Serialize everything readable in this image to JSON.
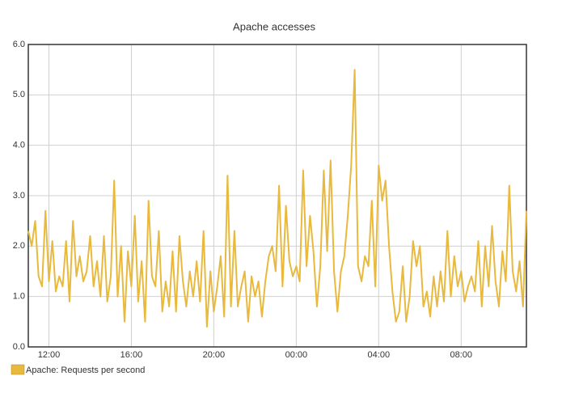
{
  "chart_data": {
    "type": "line",
    "title": "Apache accesses",
    "categories": [
      null,
      null,
      null,
      null,
      null,
      null,
      "12:00",
      null,
      null,
      null,
      null,
      null,
      null,
      null,
      null,
      null,
      null,
      null,
      null,
      null,
      null,
      null,
      null,
      null,
      null,
      null,
      null,
      null,
      null,
      null,
      "16:00",
      null,
      null,
      null,
      null,
      null,
      null,
      null,
      null,
      null,
      null,
      null,
      null,
      null,
      null,
      null,
      null,
      null,
      null,
      null,
      null,
      null,
      null,
      null,
      "20:00",
      null,
      null,
      null,
      null,
      null,
      null,
      null,
      null,
      null,
      null,
      null,
      null,
      null,
      null,
      null,
      null,
      null,
      null,
      null,
      null,
      null,
      null,
      null,
      "00:00",
      null,
      null,
      null,
      null,
      null,
      null,
      null,
      null,
      null,
      null,
      null,
      null,
      null,
      null,
      null,
      null,
      null,
      null,
      null,
      null,
      null,
      null,
      null,
      "04:00",
      null,
      null,
      null,
      null,
      null,
      null,
      null,
      null,
      null,
      null,
      null,
      null,
      null,
      null,
      null,
      null,
      null,
      null,
      null,
      null,
      null,
      null,
      null,
      "08:00",
      null,
      null,
      null,
      null,
      null,
      null,
      null,
      null,
      null,
      null,
      null,
      null,
      null,
      null,
      null,
      null,
      null,
      null,
      null
    ],
    "series": [
      {
        "name": "Apache: Requests per second",
        "color": "#e8b93c",
        "values": [
          2.3,
          2.0,
          2.5,
          1.4,
          1.2,
          2.7,
          1.3,
          2.1,
          1.1,
          1.4,
          1.2,
          2.1,
          0.9,
          2.5,
          1.4,
          1.8,
          1.3,
          1.5,
          2.2,
          1.2,
          1.7,
          1.0,
          2.2,
          0.9,
          1.4,
          3.3,
          1.0,
          2.0,
          0.5,
          1.9,
          1.2,
          2.6,
          0.9,
          1.7,
          0.5,
          2.9,
          1.4,
          1.2,
          2.3,
          0.7,
          1.3,
          0.8,
          1.9,
          0.7,
          2.2,
          1.3,
          0.8,
          1.5,
          1.0,
          1.7,
          0.9,
          2.3,
          0.4,
          1.5,
          0.7,
          1.2,
          1.8,
          0.6,
          3.4,
          0.8,
          2.3,
          0.8,
          1.2,
          1.5,
          0.5,
          1.4,
          1.0,
          1.3,
          0.6,
          1.3,
          1.8,
          2.0,
          1.5,
          3.2,
          1.2,
          2.8,
          1.7,
          1.4,
          1.6,
          1.3,
          3.5,
          1.6,
          2.6,
          1.9,
          0.8,
          1.6,
          3.5,
          1.9,
          3.7,
          1.5,
          0.7,
          1.5,
          1.8,
          2.6,
          3.6,
          5.5,
          1.6,
          1.3,
          1.8,
          1.6,
          2.9,
          1.2,
          3.6,
          2.9,
          3.3,
          2.0,
          1.1,
          0.5,
          0.7,
          1.6,
          0.5,
          1.0,
          2.1,
          1.6,
          2.0,
          0.8,
          1.1,
          0.6,
          1.4,
          0.8,
          1.5,
          0.9,
          2.3,
          1.0,
          1.8,
          1.2,
          1.5,
          0.9,
          1.2,
          1.4,
          1.1,
          2.1,
          0.8,
          2.0,
          1.2,
          2.4,
          1.3,
          0.8,
          1.9,
          1.3,
          3.2,
          1.5,
          1.1,
          1.7,
          0.8,
          2.7
        ]
      }
    ],
    "ylim": [
      0,
      6
    ],
    "yticks": [
      {
        "value": 0,
        "label": "0.0"
      },
      {
        "value": 1,
        "label": "1.0"
      },
      {
        "value": 2,
        "label": "2.0"
      },
      {
        "value": 3,
        "label": "3.0"
      },
      {
        "value": 4,
        "label": "4.0"
      },
      {
        "value": 5,
        "label": "5.0"
      },
      {
        "value": 6,
        "label": "6.0"
      }
    ],
    "grid": true,
    "legend": "bottom-left"
  }
}
